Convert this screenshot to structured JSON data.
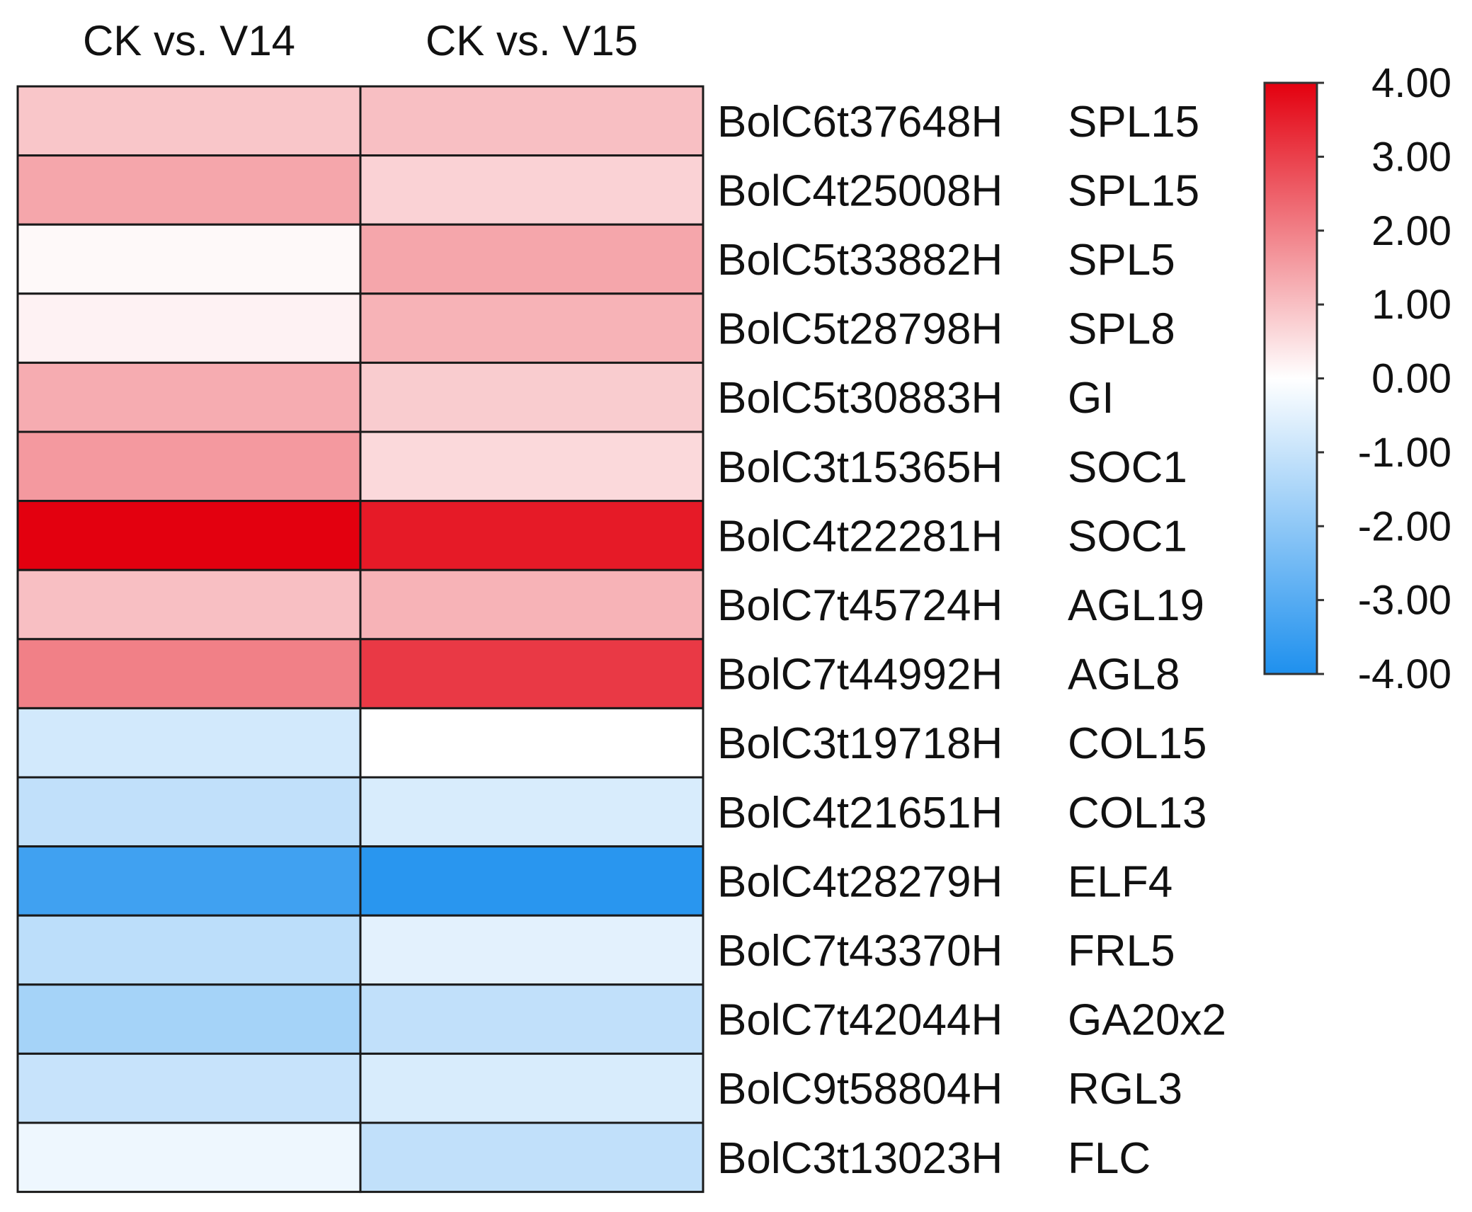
{
  "chart_data": {
    "type": "heatmap",
    "columns": [
      "CK vs. V14",
      "CK vs. V15"
    ],
    "rows": [
      {
        "id": "BolC6t37648H",
        "gene": "SPL15",
        "values": [
          0.9,
          1.0
        ]
      },
      {
        "id": "BolC4t25008H",
        "gene": "SPL15",
        "values": [
          1.4,
          0.7
        ]
      },
      {
        "id": "BolC5t33882H",
        "gene": "SPL5",
        "values": [
          0.1,
          1.4
        ]
      },
      {
        "id": "BolC5t28798H",
        "gene": "SPL8",
        "values": [
          0.2,
          1.2
        ]
      },
      {
        "id": "BolC5t30883H",
        "gene": "GI",
        "values": [
          1.3,
          0.8
        ]
      },
      {
        "id": "BolC3t15365H",
        "gene": "SOC1",
        "values": [
          1.6,
          0.6
        ]
      },
      {
        "id": "BolC4t22281H",
        "gene": "SOC1",
        "values": [
          4.0,
          3.6
        ]
      },
      {
        "id": "BolC7t45724H",
        "gene": "AGL19",
        "values": [
          1.0,
          1.2
        ]
      },
      {
        "id": "BolC7t44992H",
        "gene": "AGL8",
        "values": [
          2.0,
          3.1
        ]
      },
      {
        "id": "BolC3t19718H",
        "gene": "COL15",
        "values": [
          -0.8,
          0.0
        ]
      },
      {
        "id": "BolC4t21651H",
        "gene": "COL13",
        "values": [
          -1.1,
          -0.7
        ]
      },
      {
        "id": "BolC4t28279H",
        "gene": "ELF4",
        "values": [
          -3.4,
          -3.8
        ]
      },
      {
        "id": "BolC7t43370H",
        "gene": "FRL5",
        "values": [
          -1.2,
          -0.5
        ]
      },
      {
        "id": "BolC7t42044H",
        "gene": "GA20x2",
        "values": [
          -1.6,
          -1.1
        ]
      },
      {
        "id": "BolC9t58804H",
        "gene": "RGL3",
        "values": [
          -1.0,
          -0.7
        ]
      },
      {
        "id": "BolC3t13023H",
        "gene": "FLC",
        "values": [
          -0.3,
          -1.1
        ]
      }
    ],
    "color_scale": {
      "min": -4,
      "max": 4,
      "low_color": "#1e90ee",
      "mid_color": "#ffffff",
      "high_color": "#e3000f",
      "ticks": [
        "4.00",
        "3.00",
        "2.00",
        "1.00",
        "0.00",
        "-1.00",
        "-2.00",
        "-3.00",
        "-4.00"
      ]
    },
    "legend_position": "right"
  }
}
